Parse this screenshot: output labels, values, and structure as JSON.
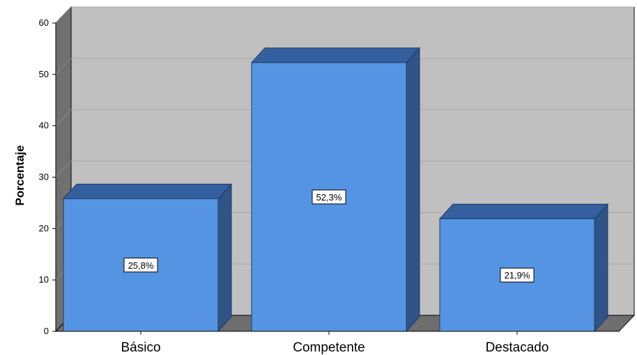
{
  "chart_data": {
    "type": "bar",
    "style": "3d",
    "categories": [
      "Básico",
      "Competente",
      "Destacado"
    ],
    "values": [
      25.8,
      52.3,
      21.9
    ],
    "data_labels": [
      "25,8%",
      "52,3%",
      "21,9%"
    ],
    "ylabel": "Porcentaje",
    "xlabel": "",
    "ylim": [
      0,
      60
    ],
    "yticks": [
      "0",
      "10",
      "20",
      "30",
      "40",
      "50",
      "60"
    ],
    "grid": true,
    "colors": {
      "bar_front": "#5594e2",
      "bar_top": "#3560a0",
      "bar_side": "#2f5488",
      "plot_back": "#c0c0c0",
      "wall_side": "#707070",
      "floor": "#6e6e6e"
    }
  }
}
